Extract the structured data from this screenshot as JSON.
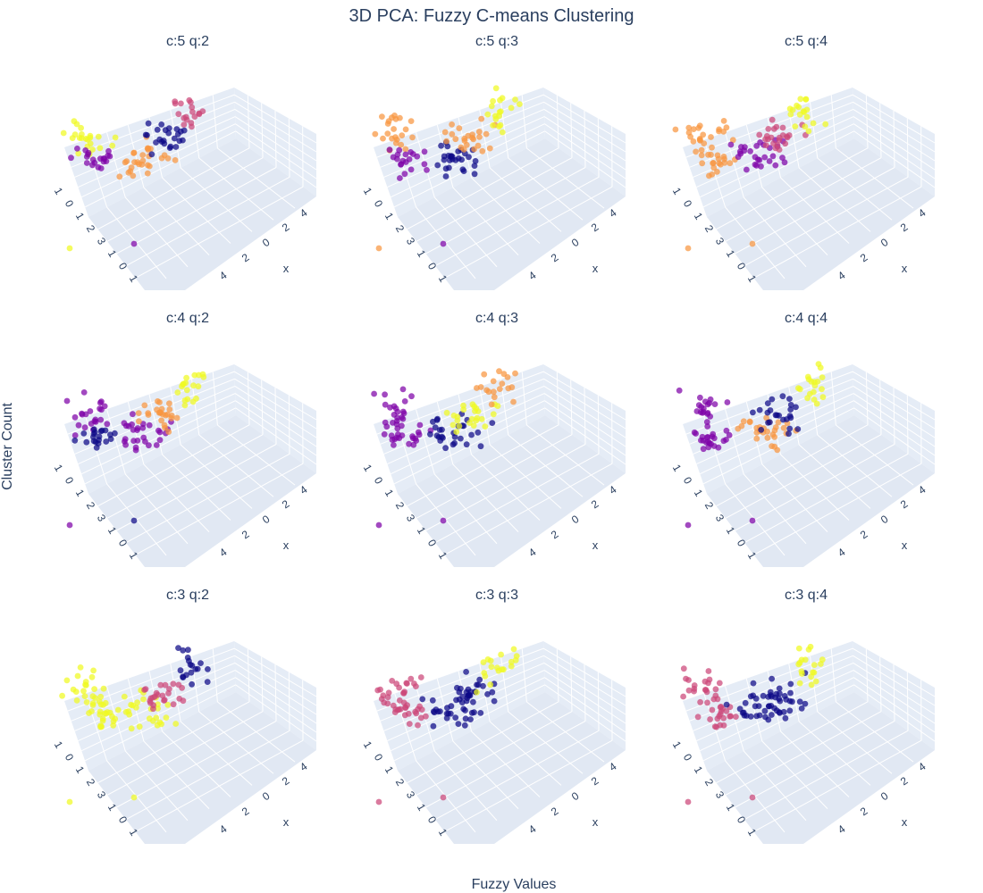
{
  "chart_data": {
    "type": "scatter",
    "projection": "3d",
    "title": "3D PCA: Fuzzy C-means Clustering",
    "xlabel": "Fuzzy Values",
    "ylabel": "Cluster Count",
    "scene_axis_title": "x",
    "scene_x_ticks": [
      "4",
      "2",
      "0",
      "2",
      "4"
    ],
    "scene_depth_ticks": [
      "1",
      "0",
      "1",
      "2",
      "3",
      "1",
      "0",
      "1"
    ],
    "grid": true,
    "colorscale": "plasma",
    "palette": {
      "purple": "#7e03a8",
      "navy": "#0d0887",
      "magenta": "#cc4778",
      "orange": "#f89540",
      "yellow": "#f0f921",
      "pink": "#cc4778"
    },
    "panels": [
      {
        "title": "c:5 q:2",
        "row": 0,
        "col": 0,
        "clusters": 5,
        "q": 2,
        "colors": [
          "yellow",
          "purple",
          "orange",
          "navy",
          "magenta"
        ]
      },
      {
        "title": "c:5 q:3",
        "row": 0,
        "col": 1,
        "clusters": 5,
        "q": 3,
        "colors": [
          "orange",
          "purple",
          "navy",
          "orange",
          "yellow"
        ]
      },
      {
        "title": "c:5 q:4",
        "row": 0,
        "col": 2,
        "clusters": 5,
        "q": 4,
        "colors": [
          "orange",
          "orange",
          "purple",
          "magenta",
          "yellow"
        ]
      },
      {
        "title": "c:4 q:2",
        "row": 1,
        "col": 0,
        "clusters": 4,
        "q": 2,
        "colors": [
          "purple",
          "navy",
          "purple",
          "orange",
          "yellow"
        ]
      },
      {
        "title": "c:4 q:3",
        "row": 1,
        "col": 1,
        "clusters": 4,
        "q": 3,
        "colors": [
          "purple",
          "purple",
          "navy",
          "yellow",
          "orange"
        ]
      },
      {
        "title": "c:4 q:4",
        "row": 1,
        "col": 2,
        "clusters": 4,
        "q": 4,
        "colors": [
          "purple",
          "purple",
          "orange",
          "navy",
          "yellow"
        ]
      },
      {
        "title": "c:3 q:2",
        "row": 2,
        "col": 0,
        "clusters": 3,
        "q": 2,
        "colors": [
          "yellow",
          "yellow",
          "yellow",
          "pink",
          "navy"
        ]
      },
      {
        "title": "c:3 q:3",
        "row": 2,
        "col": 1,
        "clusters": 3,
        "q": 3,
        "colors": [
          "pink",
          "pink",
          "navy",
          "navy",
          "yellow"
        ]
      },
      {
        "title": "c:3 q:4",
        "row": 2,
        "col": 2,
        "clusters": 3,
        "q": 4,
        "colors": [
          "pink",
          "pink",
          "navy",
          "navy",
          "yellow"
        ]
      }
    ]
  }
}
